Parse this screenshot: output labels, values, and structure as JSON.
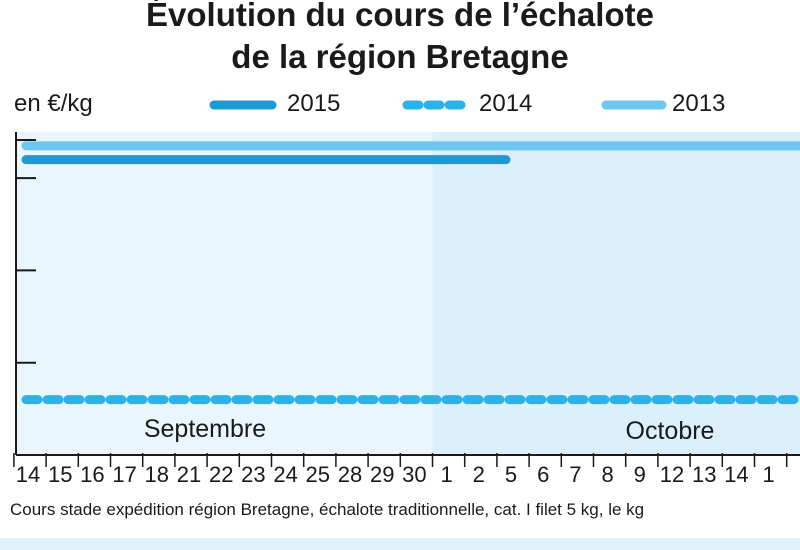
{
  "chart_data": {
    "type": "line",
    "title_lines": [
      "Évolution du cours de l’échalote",
      "de la région Bretagne"
    ],
    "ylabel": "en €/kg",
    "x": [
      "14",
      "15",
      "16",
      "17",
      "18",
      "21",
      "22",
      "23",
      "24",
      "25",
      "28",
      "29",
      "30",
      "1",
      "2",
      "5",
      "6",
      "7",
      "8",
      "9",
      "12",
      "13",
      "14",
      "1"
    ],
    "months": [
      {
        "label": "Septembre",
        "start_index": 0,
        "end_index": 12
      },
      {
        "label": "Octobre",
        "start_index": 13,
        "end_index": 23
      }
    ],
    "y_ticks": [
      1,
      2,
      3
    ],
    "ylim": [
      0,
      3.5
    ],
    "series": [
      {
        "name": "2015",
        "color": "#1b9ad6",
        "style": "solid",
        "values": [
          3.2,
          3.2,
          3.2,
          3.2,
          3.2,
          3.2,
          3.2,
          3.2,
          3.2,
          3.2,
          3.2,
          3.2,
          3.2,
          3.2,
          3.2,
          null,
          null,
          null,
          null,
          null,
          null,
          null,
          null,
          null
        ]
      },
      {
        "name": "2014",
        "color": "#29b3e8",
        "style": "dashed",
        "values": [
          0.6,
          0.6,
          0.6,
          0.6,
          0.6,
          0.6,
          0.6,
          0.6,
          0.6,
          0.6,
          0.6,
          0.6,
          0.6,
          0.6,
          0.6,
          0.6,
          0.6,
          0.6,
          0.6,
          0.6,
          0.6,
          0.6,
          0.6,
          0.6
        ]
      },
      {
        "name": "2013",
        "color": "#6cc6ee",
        "style": "solid",
        "values": [
          3.35,
          3.35,
          3.35,
          3.35,
          3.35,
          3.35,
          3.35,
          3.35,
          3.35,
          3.35,
          3.35,
          3.35,
          3.35,
          3.35,
          3.35,
          3.35,
          3.35,
          3.35,
          3.35,
          3.35,
          3.35,
          3.35,
          3.35,
          3.35
        ]
      }
    ],
    "background_colors": {
      "september": "#eaf6fd",
      "october": "#dcf0fb"
    },
    "footnote": "Cours stade expédition région Bretagne, échalote traditionnelle, cat. I filet 5 kg, le kg",
    "grid": false,
    "legend_position": "top"
  }
}
